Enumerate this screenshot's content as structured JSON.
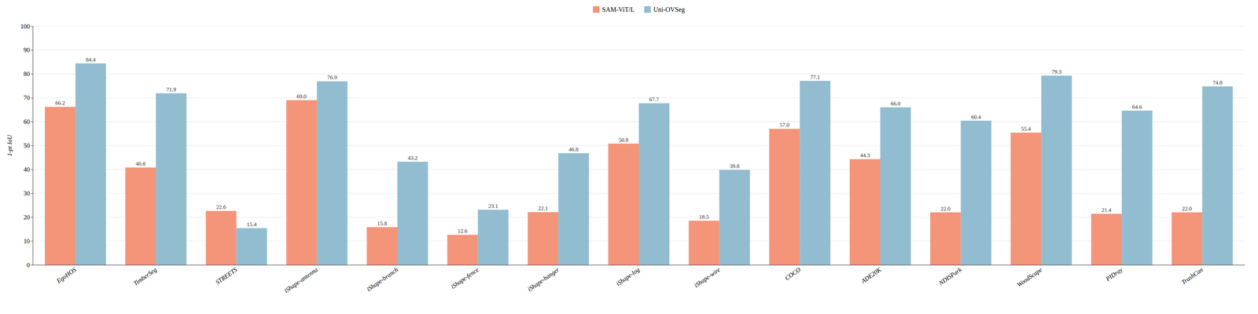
{
  "chart_data": {
    "type": "bar",
    "categories": [
      "EgoHOS",
      "TimberSeg",
      "STREETS",
      "iShape-antenna",
      "iShape-branch",
      "iShape-fence",
      "iShape-hanger",
      "iShape-log",
      "iShape-wire",
      "COCO",
      "ADE20K",
      "NDISPark",
      "WoodScape",
      "PIDray",
      "TrashCan"
    ],
    "series": [
      {
        "name": "SAM-ViT/L",
        "color": "#F4957A",
        "values": [
          66.2,
          40.8,
          22.6,
          69.0,
          15.8,
          12.6,
          22.1,
          50.8,
          18.5,
          57.0,
          44.3,
          22.0,
          55.4,
          21.4,
          22.0
        ],
        "value_labels": [
          "66.2",
          "40.8",
          "22.6",
          "69.0",
          "15.8",
          "12.6",
          "22.1",
          "50.8",
          "18.5",
          "57.0",
          "44.3",
          "22.0",
          "55.4",
          "21.4",
          "22.0"
        ]
      },
      {
        "name": "Uni-OVSeg",
        "color": "#92BDD1",
        "values": [
          84.4,
          71.9,
          15.4,
          76.9,
          43.2,
          23.1,
          46.8,
          67.7,
          39.8,
          77.1,
          66.0,
          60.4,
          79.3,
          64.6,
          74.8
        ],
        "value_labels": [
          "84.4",
          "71.9",
          "15.4",
          "76.9",
          "43.2",
          "23.1",
          "46.8",
          "67.7",
          "39.8",
          "77.1",
          "66.0",
          "60.4",
          "79.3",
          "64.6",
          "74.8"
        ]
      }
    ],
    "ylabel": "1-pt IoU",
    "ylim": [
      0,
      100
    ],
    "yticks": [
      0,
      10,
      20,
      30,
      40,
      50,
      60,
      70,
      80,
      90,
      100
    ],
    "grid": true,
    "legend": "top",
    "data_labels": true
  }
}
